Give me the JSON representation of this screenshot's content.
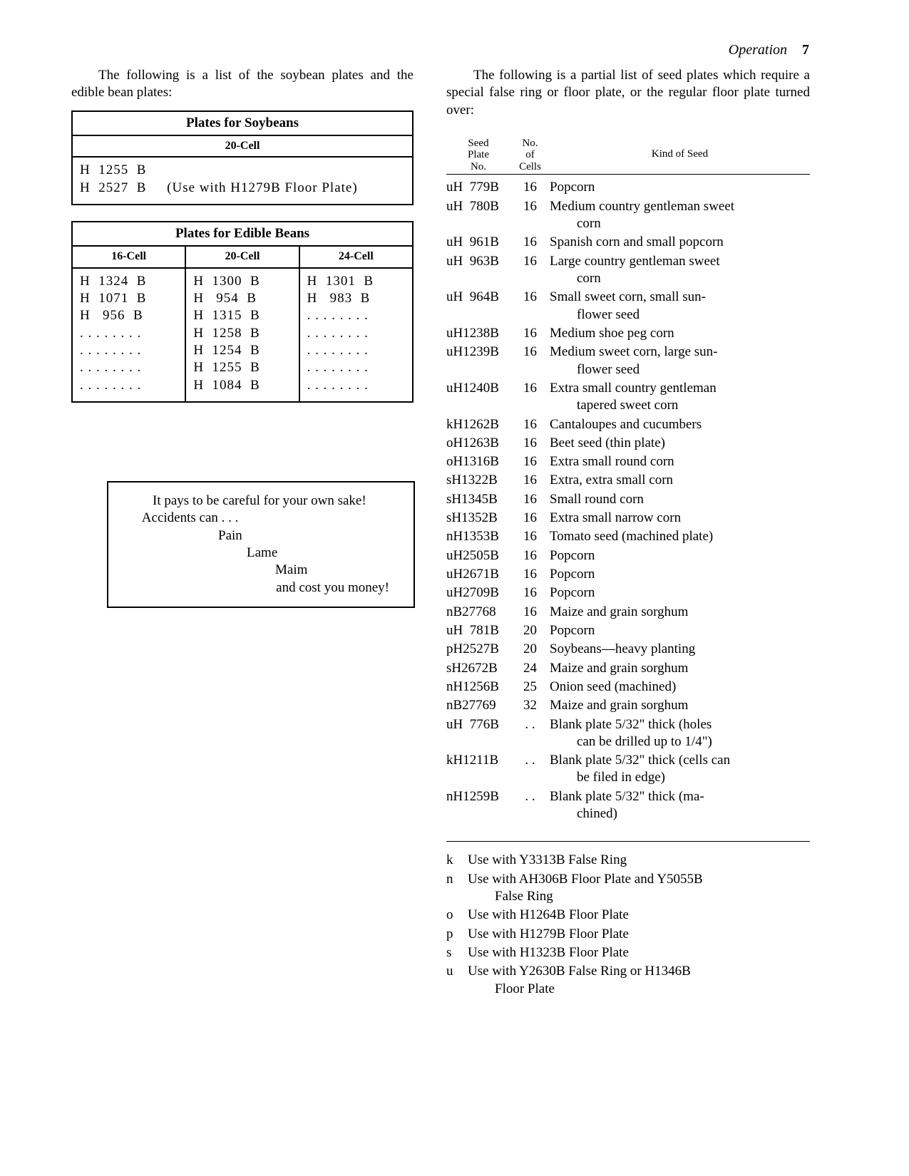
{
  "header": {
    "section": "Operation",
    "page_number": "7"
  },
  "left": {
    "intro_text": "The following is a list of the soybean plates and the edible bean plates:",
    "soy": {
      "title": "Plates for Soybeans",
      "sublabel": "20-Cell",
      "rows": [
        {
          "plate": "H  1255  B",
          "note": ""
        },
        {
          "plate": "H  2527  B",
          "note": "(Use with H1279B Floor Plate)"
        }
      ]
    },
    "edible": {
      "title": "Plates for Edible Beans",
      "columns": [
        "16-Cell",
        "20-Cell",
        "24-Cell"
      ],
      "col16": [
        "H  1324  B",
        "H  1071  B",
        "H   956  B",
        ". . . . . . . .",
        ". . . . . . . .",
        ". . . . . . . .",
        ". . . . . . . ."
      ],
      "col20": [
        "H  1300  B",
        "H   954  B",
        "H  1315  B",
        "H  1258  B",
        "H  1254  B",
        "H  1255  B",
        "H  1084  B"
      ],
      "col24": [
        "H  1301  B",
        "H   983  B",
        ". . . . . . . .",
        ". . . . . . . .",
        ". . . . . . . .",
        ". . . . . . . .",
        ". . . . . . . ."
      ]
    },
    "safety": {
      "line1": "It pays to be careful for your own sake!",
      "line2": "Accidents can . . .",
      "w1": "Pain",
      "w2": "Lame",
      "w3": "Maim",
      "line3": "and cost you money!"
    }
  },
  "right": {
    "intro_text": "The following is a partial list of seed plates which require a special false ring or floor plate, or the regular floor plate turned over:",
    "head": {
      "no": "Seed\nPlate\nNo.",
      "cells": "No.\nof\nCells",
      "kind": "Kind of Seed"
    },
    "rows": [
      {
        "no": "uH  779B",
        "cells": "16",
        "kind": "Popcorn"
      },
      {
        "no": "uH  780B",
        "cells": "16",
        "kind": "Medium country gentleman sweet",
        "cont": "corn"
      },
      {
        "no": "uH  961B",
        "cells": "16",
        "kind": "Spanish corn and small popcorn"
      },
      {
        "no": "uH  963B",
        "cells": "16",
        "kind": "Large country gentleman sweet",
        "cont": "corn"
      },
      {
        "no": "uH  964B",
        "cells": "16",
        "kind": "Small sweet corn, small sun-",
        "cont": "flower seed"
      },
      {
        "no": "uH1238B",
        "cells": "16",
        "kind": "Medium shoe peg corn"
      },
      {
        "no": "uH1239B",
        "cells": "16",
        "kind": "Medium sweet corn, large sun-",
        "cont": "flower seed"
      },
      {
        "no": "uH1240B",
        "cells": "16",
        "kind": "Extra small country gentleman",
        "cont": "tapered sweet corn"
      },
      {
        "no": "kH1262B",
        "cells": "16",
        "kind": "Cantaloupes and cucumbers"
      },
      {
        "no": "oH1263B",
        "cells": "16",
        "kind": "Beet seed (thin plate)"
      },
      {
        "no": "oH1316B",
        "cells": "16",
        "kind": "Extra small round corn"
      },
      {
        "no": "sH1322B",
        "cells": "16",
        "kind": "Extra, extra small corn"
      },
      {
        "no": "sH1345B",
        "cells": "16",
        "kind": "Small round corn"
      },
      {
        "no": "sH1352B",
        "cells": "16",
        "kind": "Extra small narrow corn"
      },
      {
        "no": "nH1353B",
        "cells": "16",
        "kind": "Tomato seed (machined plate)"
      },
      {
        "no": "uH2505B",
        "cells": "16",
        "kind": "Popcorn"
      },
      {
        "no": "uH2671B",
        "cells": "16",
        "kind": "Popcorn"
      },
      {
        "no": "uH2709B",
        "cells": "16",
        "kind": "Popcorn"
      },
      {
        "no": "nB27768",
        "cells": "16",
        "kind": "Maize and grain sorghum"
      },
      {
        "no": "uH  781B",
        "cells": "20",
        "kind": "Popcorn"
      },
      {
        "no": "pH2527B",
        "cells": "20",
        "kind": "Soybeans—heavy planting"
      },
      {
        "no": "sH2672B",
        "cells": "24",
        "kind": "Maize and grain sorghum"
      },
      {
        "no": "nH1256B",
        "cells": "25",
        "kind": "Onion seed (machined)"
      },
      {
        "no": "nB27769",
        "cells": "32",
        "kind": "Maize and grain sorghum"
      },
      {
        "no": "uH  776B",
        "cells": ". .",
        "kind": "Blank plate 5/32\" thick (holes",
        "cont": "can be drilled up to 1/4\")"
      },
      {
        "no": "kH1211B",
        "cells": ". .",
        "kind": "Blank plate 5/32\" thick (cells can",
        "cont": "be filed in edge)"
      },
      {
        "no": "nH1259B",
        "cells": ". .",
        "kind": "Blank plate 5/32\" thick (ma-",
        "cont": "chined)"
      }
    ],
    "legend": [
      {
        "k": "k",
        "t": "Use with Y3313B False Ring"
      },
      {
        "k": "n",
        "t": "Use with AH306B Floor Plate and Y5055B",
        "cont": "False Ring"
      },
      {
        "k": "o",
        "t": "Use with H1264B Floor Plate"
      },
      {
        "k": "p",
        "t": "Use with H1279B Floor Plate"
      },
      {
        "k": "s",
        "t": "Use with H1323B Floor Plate"
      },
      {
        "k": "u",
        "t": "Use with Y2630B False Ring or H1346B",
        "cont": "Floor Plate"
      }
    ]
  }
}
